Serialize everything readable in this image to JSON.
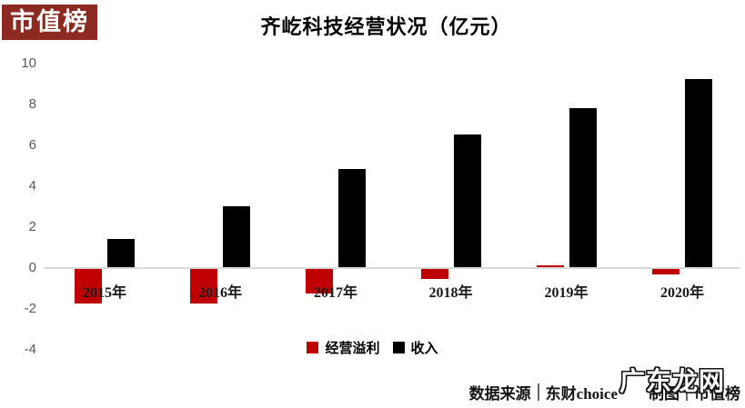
{
  "logo": {
    "text": "市值榜",
    "bg_color": "#8c2a21",
    "text_color": "#ffffff"
  },
  "title": "齐屹科技经营状况（亿元）",
  "chart_data": {
    "type": "bar",
    "title": "齐屹科技经营状况（亿元）",
    "unit": "亿元",
    "categories": [
      "2015年",
      "2016年",
      "2017年",
      "2018年",
      "2019年",
      "2020年"
    ],
    "series": [
      {
        "name": "经营溢利",
        "color": "#c00000",
        "values": [
          -1.7,
          -1.7,
          -1.2,
          -0.5,
          0.1,
          -0.25
        ]
      },
      {
        "name": "收入",
        "color": "#000000",
        "values": [
          1.4,
          3.0,
          4.8,
          6.5,
          7.8,
          9.2
        ]
      }
    ],
    "ylim": [
      -4,
      10
    ],
    "yticks": [
      10,
      8,
      6,
      4,
      2,
      0,
      -2,
      -4
    ],
    "grid": false,
    "legend_position": "bottom-center",
    "colors": {
      "axis_line": "#d9d9d9",
      "tick_label": "#595959",
      "category_label": "#1a1a1a"
    }
  },
  "footer": {
    "source_label": "数据来源",
    "separator": "|",
    "source_value": "东财choice",
    "credit_label": "制图",
    "credit_value": "市值榜",
    "watermark": "广东龙网"
  }
}
